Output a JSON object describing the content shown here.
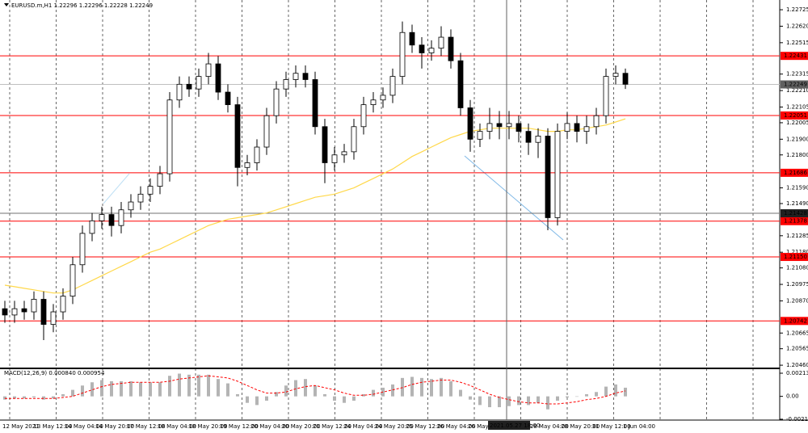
{
  "chart_data": {
    "type": "candlestick",
    "title": "EURUSD.m,H1  1.22296 1.22296 1.22228 1.22249",
    "ylim": [
      1.20445,
      1.22787
    ],
    "yticks": [
      1.22725,
      {
        "value": 1.2262,
        "label": "1.22620"
      },
      1.22515,
      1.22315,
      {
        "value": 1.2221,
        "label": "1.22210"
      },
      1.22105,
      1.22005,
      {
        "value": 1.219,
        "label": "1.21900"
      },
      {
        "value": 1.218,
        "label": "1.21800"
      },
      {
        "value": 1.2159,
        "label": "1.21590"
      },
      {
        "value": 1.2149,
        "label": "1.21490"
      },
      1.21285,
      {
        "value": 1.2118,
        "label": "1.21180"
      },
      {
        "value": 1.2108,
        "label": "1.21080"
      },
      1.20975,
      {
        "value": 1.2087,
        "label": "1.20870"
      },
      1.20665,
      1.20565,
      {
        "value": 1.2046,
        "label": "1.20460"
      }
    ],
    "levels": [
      1.22431,
      1.22051,
      1.21686,
      1.21378,
      {
        "value": 1.2115,
        "label": "1.21150"
      },
      1.20742
    ],
    "level_color": "#ff0000",
    "current_price": 1.22249,
    "crosshair_price": 1.21428,
    "crosshair_time": "2021.05.27 18:00",
    "time_labels": [
      "12 May 2021",
      "13 May 12:00",
      "14 May 04:00",
      "14 May 20:00",
      "17 May 12:00",
      "18 May 04:00",
      "18 May 20:00",
      "19 May 12:00",
      "20 May 04:00",
      "20 May 20:00",
      "21 May 12:00",
      "24 May 04:00",
      "24 May 20:00",
      "25 May 12:00",
      "26 May 04:00",
      "26 May 20:00",
      "28 May 04:00",
      "28 May 20:00",
      "31 May 12:00",
      "1 Jun 04:00"
    ],
    "candles": [
      [
        1.2082,
        1.2087,
        1.2073,
        1.2078
      ],
      [
        1.2078,
        1.2087,
        1.2073,
        1.2082
      ],
      [
        1.2082,
        1.2087,
        1.2075,
        1.208
      ],
      [
        1.208,
        1.2093,
        1.2075,
        1.2088
      ],
      [
        1.2088,
        1.2093,
        1.2062,
        1.2072
      ],
      [
        1.2072,
        1.2085,
        1.2067,
        1.208
      ],
      [
        1.208,
        1.2095,
        1.2075,
        1.209
      ],
      [
        1.209,
        1.2115,
        1.2085,
        1.211
      ],
      [
        1.211,
        1.2135,
        1.2105,
        1.213
      ],
      [
        1.213,
        1.2143,
        1.2125,
        1.2138
      ],
      [
        1.2138,
        1.2147,
        1.2133,
        1.2142
      ],
      [
        1.2142,
        1.2147,
        1.2128,
        1.2135
      ],
      [
        1.2135,
        1.215,
        1.213,
        1.2145
      ],
      [
        1.2145,
        1.2155,
        1.214,
        1.215
      ],
      [
        1.215,
        1.216,
        1.2145,
        1.2155
      ],
      [
        1.2155,
        1.2165,
        1.215,
        1.216
      ],
      [
        1.216,
        1.2173,
        1.2155,
        1.2168
      ],
      [
        1.2168,
        1.222,
        1.2163,
        1.2215
      ],
      [
        1.2215,
        1.223,
        1.221,
        1.2225
      ],
      [
        1.2225,
        1.223,
        1.2217,
        1.2222
      ],
      [
        1.2222,
        1.2235,
        1.2217,
        1.223
      ],
      [
        1.223,
        1.2245,
        1.2225,
        1.2238
      ],
      [
        1.2238,
        1.2243,
        1.2215,
        1.222
      ],
      [
        1.222,
        1.2225,
        1.2207,
        1.2212
      ],
      [
        1.2212,
        1.2217,
        1.216,
        1.2172
      ],
      [
        1.2172,
        1.218,
        1.2167,
        1.2175
      ],
      [
        1.2175,
        1.219,
        1.217,
        1.2185
      ],
      [
        1.2185,
        1.221,
        1.218,
        1.2205
      ],
      [
        1.2205,
        1.2227,
        1.22,
        1.2222
      ],
      [
        1.2222,
        1.2233,
        1.2217,
        1.2228
      ],
      [
        1.2228,
        1.2237,
        1.2223,
        1.2232
      ],
      [
        1.2232,
        1.2237,
        1.2223,
        1.2228
      ],
      [
        1.2228,
        1.2233,
        1.2193,
        1.2198
      ],
      [
        1.2198,
        1.2203,
        1.2162,
        1.2175
      ],
      [
        1.2175,
        1.2185,
        1.217,
        1.218
      ],
      [
        1.218,
        1.2187,
        1.2175,
        1.2182
      ],
      [
        1.2182,
        1.2203,
        1.2177,
        1.2198
      ],
      [
        1.2198,
        1.2217,
        1.2193,
        1.2212
      ],
      [
        1.2212,
        1.222,
        1.2207,
        1.2215
      ],
      [
        1.2215,
        1.2223,
        1.221,
        1.2218
      ],
      [
        1.2218,
        1.2235,
        1.2213,
        1.223
      ],
      [
        1.223,
        1.2265,
        1.2225,
        1.2258
      ],
      [
        1.2258,
        1.2263,
        1.2245,
        1.225
      ],
      [
        1.225,
        1.2255,
        1.2235,
        1.2245
      ],
      [
        1.2245,
        1.2253,
        1.224,
        1.2248
      ],
      [
        1.2248,
        1.2262,
        1.2243,
        1.2255
      ],
      [
        1.2255,
        1.226,
        1.2235,
        1.224
      ],
      [
        1.224,
        1.2245,
        1.2205,
        1.221
      ],
      [
        1.221,
        1.2215,
        1.2182,
        1.219
      ],
      [
        1.219,
        1.22,
        1.2185,
        1.2195
      ],
      [
        1.2195,
        1.221,
        1.219,
        1.22
      ],
      [
        1.22,
        1.2208,
        1.219,
        1.2198
      ],
      [
        1.2198,
        1.2208,
        1.219,
        1.22
      ],
      [
        1.22,
        1.2205,
        1.2188,
        1.2195
      ],
      [
        1.2195,
        1.22,
        1.218,
        1.2188
      ],
      [
        1.2188,
        1.2197,
        1.2178,
        1.2192
      ],
      [
        1.2192,
        1.2197,
        1.2132,
        1.214
      ],
      [
        1.214,
        1.22,
        1.2135,
        1.2195
      ],
      [
        1.2195,
        1.2207,
        1.219,
        1.22
      ],
      [
        1.22,
        1.2205,
        1.2188,
        1.2195
      ],
      [
        1.2195,
        1.2205,
        1.2187,
        1.2198
      ],
      [
        1.2198,
        1.221,
        1.2193,
        1.2205
      ],
      [
        1.2205,
        1.2235,
        1.22,
        1.223
      ],
      [
        1.223,
        1.2237,
        1.2225,
        1.2232
      ],
      [
        1.2232,
        1.2235,
        1.2222,
        1.2225
      ]
    ],
    "ma": [
      1.2097,
      1.2096,
      1.2095,
      1.2094,
      1.2093,
      1.2092,
      1.2092,
      1.2094,
      1.2097,
      1.21,
      1.2103,
      1.2106,
      1.2109,
      1.2112,
      1.2115,
      1.2118,
      1.212,
      1.2123,
      1.2126,
      1.2129,
      1.2132,
      1.2135,
      1.2137,
      1.2139,
      1.214,
      1.2141,
      1.2142,
      1.2143,
      1.2145,
      1.2147,
      1.2149,
      1.2151,
      1.2153,
      1.2154,
      1.2155,
      1.2157,
      1.2159,
      1.2162,
      1.2165,
      1.2168,
      1.2171,
      1.2175,
      1.2179,
      1.2182,
      1.2185,
      1.2188,
      1.2191,
      1.2193,
      1.2195,
      1.2196,
      1.2197,
      1.2197,
      1.2197,
      1.2197,
      1.2197,
      1.2196,
      1.2195,
      1.2195,
      1.2196,
      1.2196,
      1.2197,
      1.2198,
      1.2199,
      1.2201,
      1.2203
    ],
    "ma_color": "#ffd84a",
    "macd_title": "MACD(12,26,9) 0.000840 0.000954",
    "macd_ylim": [
      -0.00219,
      0.00251
    ],
    "macd_ticks": [
      0.002137,
      {
        "value": 0,
        "label": "0.00"
      },
      -0.002113
    ],
    "macd": [
      -0.0003,
      -0.0002,
      -0.0002,
      -0.0001,
      -0.0003,
      -0.0002,
      0.0002,
      0.0006,
      0.001,
      0.0013,
      0.0015,
      0.0014,
      0.0014,
      0.0014,
      0.0013,
      0.0013,
      0.0013,
      0.0019,
      0.0021,
      0.002,
      0.002,
      0.002,
      0.0016,
      0.0012,
      0.0002,
      -0.0006,
      -0.0008,
      -0.0004,
      0.0004,
      0.001,
      0.0015,
      0.0016,
      0.001,
      0.0002,
      -0.0004,
      -0.0006,
      -0.0004,
      0.0002,
      0.0006,
      0.0008,
      0.0011,
      0.0017,
      0.0018,
      0.0017,
      0.0016,
      0.0017,
      0.0014,
      0.0006,
      -0.0003,
      -0.0008,
      -0.001,
      -0.001,
      -0.0009,
      -0.0008,
      -0.0008,
      -0.0006,
      -0.0012,
      -0.0004,
      -0.0001,
      0,
      0.0002,
      0.0004,
      0.0009,
      0.0011,
      0.0008
    ],
    "signal": [
      -0.0002,
      -0.0002,
      -0.0002,
      -0.0002,
      -0.0002,
      -0.0002,
      -0.0001,
      0,
      0.0003,
      0.0006,
      0.0009,
      0.0011,
      0.0012,
      0.0013,
      0.0013,
      0.0013,
      0.0013,
      0.0014,
      0.0016,
      0.0017,
      0.0018,
      0.0019,
      0.0018,
      0.0017,
      0.0014,
      0.001,
      0.0006,
      0.0003,
      0.0003,
      0.0004,
      0.0007,
      0.0009,
      0.001,
      0.0008,
      0.0006,
      0.0003,
      0.0001,
      0.0001,
      0.0002,
      0.0004,
      0.0006,
      0.0008,
      0.0011,
      0.0013,
      0.0014,
      0.0015,
      0.0015,
      0.0013,
      0.001,
      0.0006,
      0.0002,
      -0.0001,
      -0.0003,
      -0.0005,
      -0.0006,
      -0.0006,
      -0.0007,
      -0.0007,
      -0.0006,
      -0.0005,
      -0.0003,
      -0.0002,
      0,
      0.0003,
      0.0005
    ],
    "macd_color": "#b4b4b4",
    "signal_color": "#ff0000"
  }
}
